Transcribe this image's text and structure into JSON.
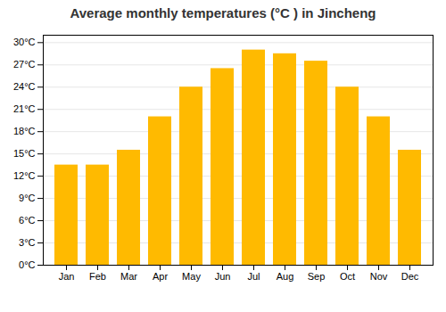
{
  "chart_data": {
    "type": "bar",
    "title": "Average monthly temperatures (°C ) in Jincheng",
    "categories": [
      "Jan",
      "Feb",
      "Mar",
      "Apr",
      "May",
      "Jun",
      "Jul",
      "Aug",
      "Sep",
      "Oct",
      "Nov",
      "Dec"
    ],
    "values": [
      13.5,
      13.5,
      15.5,
      20.0,
      24.0,
      26.5,
      29.0,
      28.5,
      27.5,
      24.0,
      20.0,
      15.5
    ],
    "color": "#FFBA00",
    "ylim": [
      0,
      31
    ],
    "yticks": [
      {
        "value": 0,
        "label": "0°C"
      },
      {
        "value": 3,
        "label": "3°C"
      },
      {
        "value": 6,
        "label": "6°C"
      },
      {
        "value": 9,
        "label": "9°C"
      },
      {
        "value": 12,
        "label": "12°C"
      },
      {
        "value": 15,
        "label": "15°C"
      },
      {
        "value": 18,
        "label": "18°C"
      },
      {
        "value": 21,
        "label": "21°C"
      },
      {
        "value": 24,
        "label": "24°C"
      },
      {
        "value": 27,
        "label": "27°C"
      },
      {
        "value": 30,
        "label": "30°C"
      }
    ],
    "grid": true
  }
}
